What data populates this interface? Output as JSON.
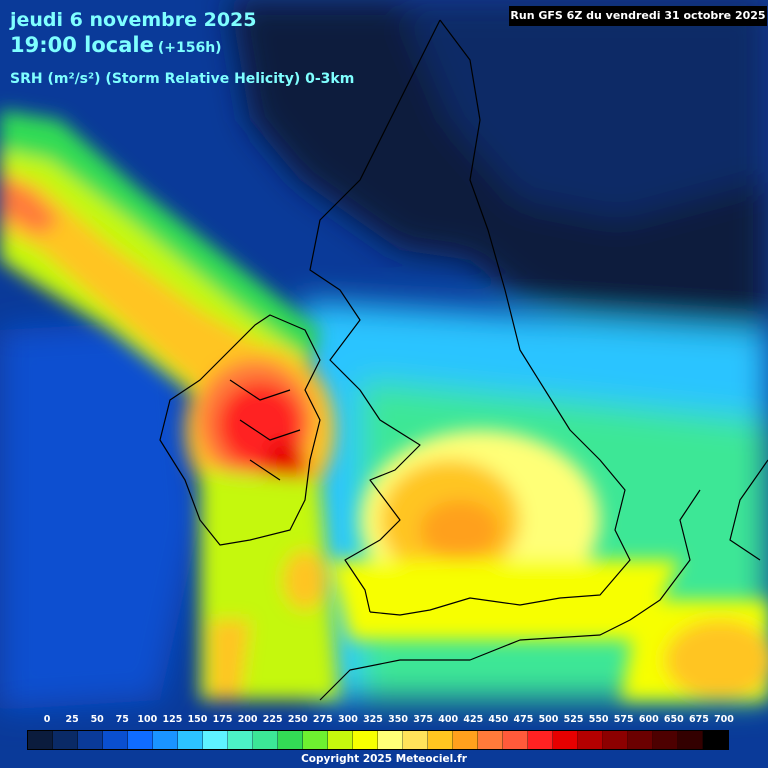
{
  "header": {
    "date_line": "jeudi 6 novembre 2025",
    "time_line": "19:00 locale",
    "lead_time": "(+156h)",
    "parameter": "SRH (m²/s²) (Storm Relative Helicity) 0-3km"
  },
  "run_info": "Run GFS 6Z du vendredi 31 octobre 2025",
  "legend": {
    "ticks": [
      "0",
      "25",
      "50",
      "75",
      "100",
      "125",
      "150",
      "175",
      "200",
      "225",
      "250",
      "275",
      "300",
      "325",
      "350",
      "375",
      "400",
      "425",
      "450",
      "475",
      "500",
      "525",
      "550",
      "575",
      "600",
      "650",
      "675",
      "700"
    ],
    "colors": [
      "#0b1c3d",
      "#0a2a66",
      "#0a3a99",
      "#0a4fd0",
      "#0f6cff",
      "#1a94ff",
      "#2cc4ff",
      "#5ef2ff",
      "#4cf2c6",
      "#3ce796",
      "#33db55",
      "#6ef030",
      "#c5f80d",
      "#f7ff00",
      "#ffff77",
      "#ffe35a",
      "#ffc520",
      "#ffa01d",
      "#ff7a3a",
      "#ff5a3a",
      "#ff2222",
      "#e60000",
      "#b40000",
      "#8c0000",
      "#6b0000",
      "#4d0000",
      "#330000",
      "#000000"
    ]
  },
  "copyright": "Copyright 2025 Meteociel.fr"
}
